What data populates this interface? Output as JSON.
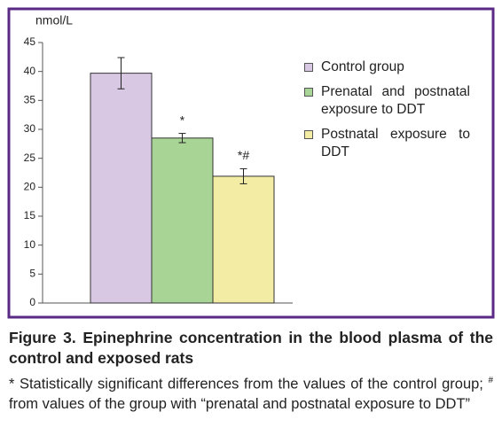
{
  "chart_data": {
    "type": "bar",
    "y_label": "nmol/L",
    "categories": [
      "Control group",
      "Prenatal and postnatal exposure to DDT",
      "Postnatal exposure to DDT"
    ],
    "values": [
      39.7,
      28.5,
      21.9
    ],
    "errors": [
      2.7,
      0.8,
      1.3
    ],
    "annotations": [
      null,
      "*",
      "*#"
    ],
    "colors": [
      "#d9c8e4",
      "#a8d596",
      "#f2eca4"
    ],
    "ylim": [
      0,
      45
    ],
    "yticks": [
      0,
      5,
      10,
      15,
      20,
      25,
      30,
      35,
      40,
      45
    ],
    "grid": false
  },
  "caption": {
    "title": "Figure 3. Epinephrine concentration in the blood plasma of the control and exposed rats",
    "note": [
      "* Statistically significant differences from the values of the control group; ",
      "#",
      " from values of the group with “prenatal and postnatal exposure to DDT”"
    ]
  }
}
